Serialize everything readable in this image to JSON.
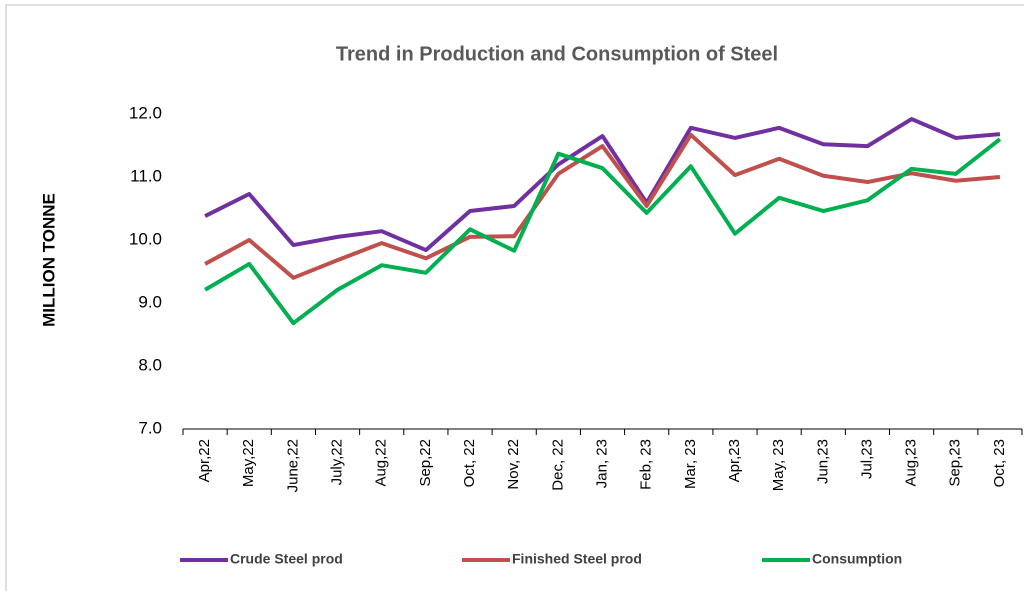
{
  "chart_data": {
    "type": "line",
    "title": "Trend in Production and Consumption of Steel",
    "y_label": "MILLION TONNE",
    "categories": [
      "Apr,22",
      "May,22",
      "June,22",
      "July,22",
      "Aug,22",
      "Sep,22",
      "Oct, 22",
      "Nov, 22",
      "Dec, 22",
      "Jan, 23",
      "Feb, 23",
      "Mar, 23",
      "Apr,23",
      "May, 23",
      "Jun,23",
      "Jul,23",
      "Aug,23",
      "Sep,23",
      "Oct, 23"
    ],
    "series": [
      {
        "name": "Crude Steel prod",
        "color": "#7030a0",
        "values": [
          10.38,
          10.73,
          9.92,
          10.05,
          10.14,
          9.84,
          10.46,
          10.54,
          11.2,
          11.65,
          10.59,
          11.78,
          11.62,
          11.78,
          11.52,
          11.49,
          11.92,
          11.62,
          11.68
        ]
      },
      {
        "name": "Finished Steel prod",
        "color": "#c0504d",
        "values": [
          9.62,
          10.0,
          9.4,
          9.68,
          9.95,
          9.71,
          10.05,
          10.06,
          11.05,
          11.49,
          10.54,
          11.67,
          11.03,
          11.29,
          11.02,
          10.92,
          11.06,
          10.94,
          11.0
        ]
      },
      {
        "name": "Consumption",
        "color": "#00b050",
        "values": [
          9.21,
          9.62,
          8.68,
          9.21,
          9.6,
          9.48,
          10.17,
          9.83,
          11.37,
          11.14,
          10.43,
          11.17,
          10.1,
          10.67,
          10.46,
          10.63,
          11.13,
          11.05,
          11.6
        ]
      }
    ],
    "ylim": [
      7,
      12
    ],
    "yticks": [
      {
        "value": 7,
        "label": "7.0"
      },
      {
        "value": 8,
        "label": "8.0"
      },
      {
        "value": 9,
        "label": "9.0"
      },
      {
        "value": 10,
        "label": "10.0"
      },
      {
        "value": 11,
        "label": "11.0"
      },
      {
        "value": 12,
        "label": "12.0"
      }
    ],
    "legend": "bottom"
  }
}
